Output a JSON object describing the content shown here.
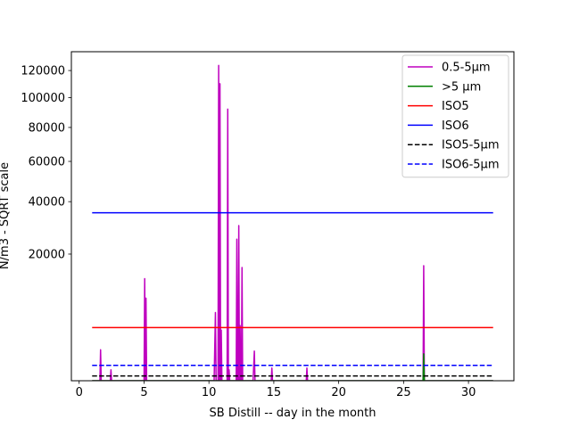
{
  "chart_data": {
    "type": "line",
    "xlabel": "SB Distill -- day in the month",
    "ylabel": "N/m3 - SQRT scale",
    "y_scale": "sqrt",
    "xlim": [
      -0.6,
      33.5
    ],
    "ylim": [
      0,
      135000
    ],
    "x_ticks": [
      0,
      5,
      10,
      15,
      20,
      25,
      30
    ],
    "y_ticks": [
      20000,
      40000,
      60000,
      80000,
      100000,
      120000
    ],
    "grid": false,
    "legend_position": "top-right",
    "series": [
      {
        "name": "0.5-5µm",
        "color": "#bf00bf",
        "style": "solid",
        "x": [
          1.0,
          1.6,
          1.65,
          1.7,
          2.4,
          2.45,
          2.5,
          5.0,
          5.05,
          5.1,
          5.15,
          5.2,
          5.25,
          10.4,
          10.5,
          10.55,
          10.6,
          10.7,
          10.75,
          10.8,
          10.85,
          10.9,
          10.95,
          11.0,
          11.3,
          11.4,
          11.45,
          11.5,
          11.55,
          11.6,
          12.0,
          12.1,
          12.15,
          12.2,
          12.25,
          12.3,
          12.35,
          12.4,
          12.45,
          12.5,
          12.55,
          12.6,
          12.65,
          12.7,
          13.4,
          13.5,
          13.55,
          13.6,
          14.8,
          14.85,
          14.9,
          17.5,
          17.55,
          17.6,
          26.4,
          26.5,
          26.55,
          26.6,
          26.65,
          26.7,
          31.9
        ],
        "values": [
          0,
          0,
          1200,
          0,
          0,
          150,
          0,
          0,
          13000,
          0,
          8500,
          0,
          0,
          0,
          5800,
          0,
          0,
          0,
          124000,
          0,
          110000,
          0,
          3200,
          0,
          0,
          0,
          92000,
          0,
          150,
          0,
          0,
          0,
          25000,
          0,
          0,
          30000,
          0,
          3800,
          0,
          0,
          16000,
          0,
          0,
          0,
          0,
          1100,
          0,
          0,
          0,
          200,
          0,
          0,
          200,
          0,
          0,
          0,
          16500,
          0,
          0,
          0,
          0
        ]
      },
      {
        "name": ">5 µm",
        "color": "#008000",
        "style": "solid",
        "x": [
          1.0,
          26.5,
          26.55,
          26.6,
          31.9
        ],
        "values": [
          0,
          0,
          900,
          0,
          0
        ]
      },
      {
        "name": "ISO5",
        "color": "#ff0000",
        "style": "solid",
        "x": [
          1.0,
          31.9
        ],
        "values": [
          3520,
          3520
        ]
      },
      {
        "name": "ISO6",
        "color": "#0000ff",
        "style": "solid",
        "x": [
          1.0,
          31.9
        ],
        "values": [
          35200,
          35200
        ]
      },
      {
        "name": "ISO5-5µm",
        "color": "#000000",
        "style": "dashed",
        "x": [
          1.0,
          31.9
        ],
        "values": [
          29,
          29
        ]
      },
      {
        "name": "ISO6-5µm",
        "color": "#0000ff",
        "style": "dashed",
        "x": [
          1.0,
          31.9
        ],
        "values": [
          293,
          293
        ]
      }
    ]
  }
}
